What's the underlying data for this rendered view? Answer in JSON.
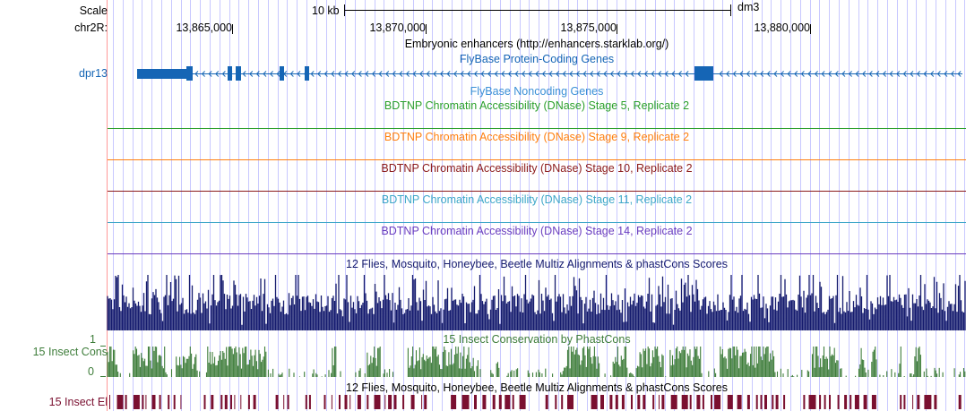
{
  "scale": {
    "label": "Scale",
    "chrom_label": "chr2R:",
    "scalebar_text": "10 kb",
    "assembly": "dm3",
    "ticks": [
      "13,865,000",
      "13,870,000",
      "13,875,000",
      "13,880,000"
    ]
  },
  "tracks": {
    "enhancers_title": "Embryonic enhancers (http://enhancers.starklab.org/)",
    "protein_coding_title": "FlyBase Protein-Coding Genes",
    "gene_label": "dpr13",
    "noncoding_title": "FlyBase Noncoding Genes",
    "dnase": [
      {
        "title": "BDTNP Chromatin Accessibility (DNase) Stage 5, Replicate 2",
        "color": "#2ca02c"
      },
      {
        "title": "BDTNP Chromatin Accessibility (DNase) Stage 9, Replicate 2",
        "color": "#ff7f0e"
      },
      {
        "title": "BDTNP Chromatin Accessibility (DNase) Stage 10, Replicate 2",
        "color": "#8b1a1a"
      },
      {
        "title": "BDTNP Chromatin Accessibility (DNase) Stage 11, Replicate 2",
        "color": "#3ea7c8"
      },
      {
        "title": "BDTNP Chromatin Accessibility (DNase) Stage 14, Replicate 2",
        "color": "#6a3dbf"
      }
    ],
    "multiz_title": "12 Flies, Mosquito, Honeybee, Beetle Multiz Alignments & phastCons Scores",
    "phastcons_title": "15 Insect Conservation by PhastCons",
    "phastcons_label": "15 Insect Cons",
    "phastcons_max": "1",
    "phastcons_min": "0",
    "elements_title": "12 Flies, Mosquito, Honeybee, Beetle Multiz Alignments & phastCons Scores",
    "elements_label": "15 Insect El"
  },
  "colors": {
    "gene": "#1565b5",
    "multiz": "#151b6e",
    "phastcons": "#3e7d3a",
    "elements": "#7a1030",
    "gridline": "#c8c8ff",
    "left_border": "#ff9999"
  }
}
